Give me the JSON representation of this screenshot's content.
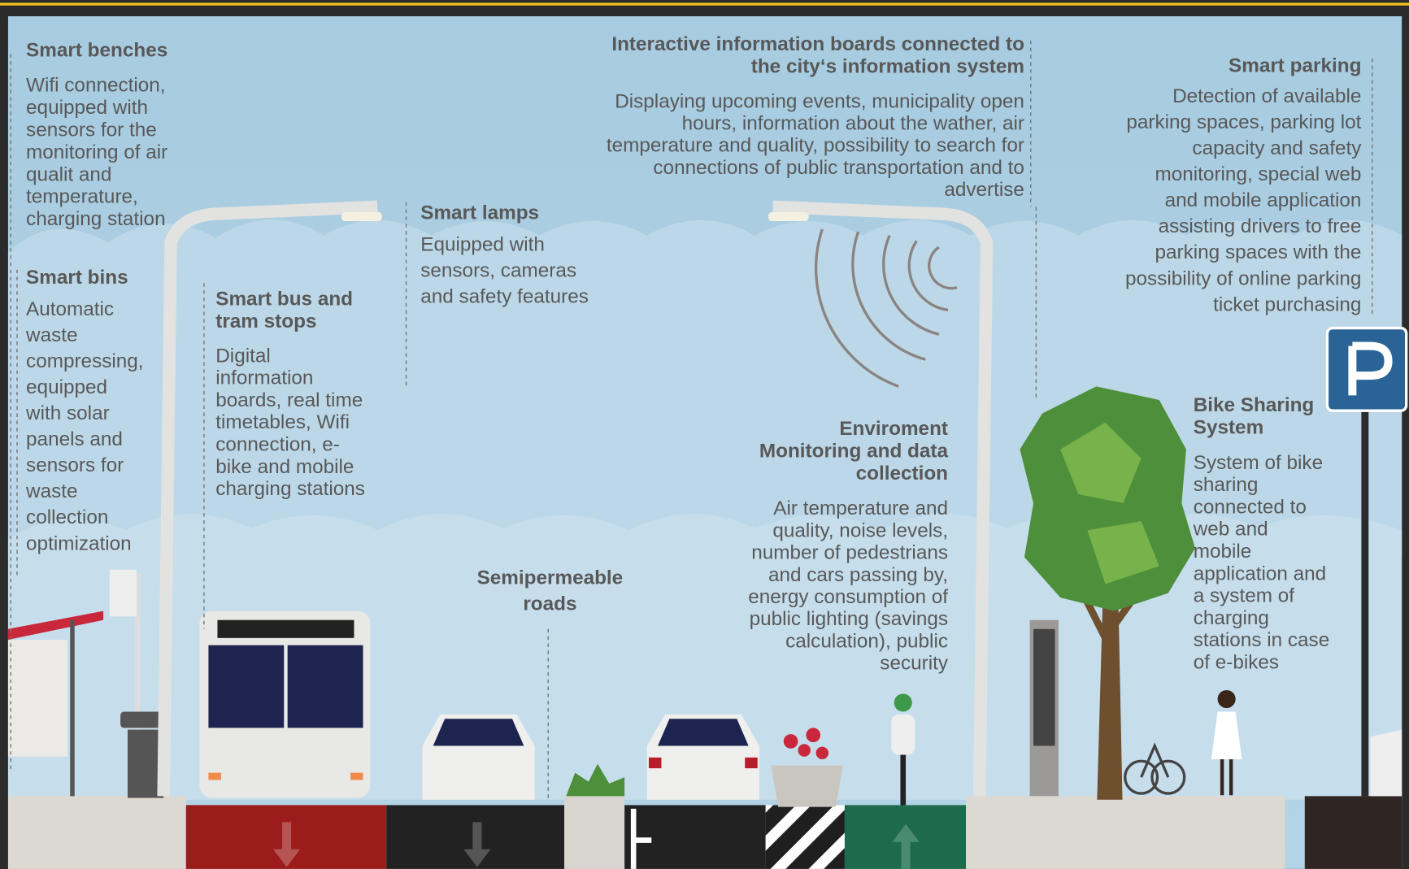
{
  "sections": [
    {
      "title": [
        "Smart benches"
      ],
      "body": [
        "Wifi connection,",
        "equipped with",
        "sensors for the",
        "monitoring of air",
        "qualit and",
        "temperature,",
        "charging station"
      ]
    },
    {
      "title": [
        "Smart bins"
      ],
      "body": [
        "Automatic",
        "waste",
        "compressing,",
        "equipped",
        "with solar",
        "panels and",
        "sensors for",
        "waste",
        "collection",
        "optimization"
      ]
    },
    {
      "title": [
        "Smart bus and",
        "tram stops"
      ],
      "body": [
        "Digital",
        "information",
        "boards, real time",
        "timetables,  Wifi",
        "connection, e-",
        "bike and mobile",
        "charging stations"
      ]
    },
    {
      "title": [
        "Smart lamps"
      ],
      "body": [
        "Equipped with",
        "sensors, cameras",
        "and safety features"
      ]
    },
    {
      "title": [
        "Interactive information  boards connected to",
        "the city‘s information  system"
      ],
      "body": [
        "Displaying upcoming events,  municipality open",
        "hours, information about the wather, air",
        "temperature and quality, possibility to search for",
        "connections of public transportation and to",
        "advertise"
      ]
    },
    {
      "title": [
        "Smart parking"
      ],
      "body": [
        "Detection of available",
        "parking spaces, parking lot",
        "capacity and safety",
        "monitoring, special web",
        "and mobile application",
        "assisting drivers to free",
        "parking spaces with the",
        "possibility of online parking",
        "ticket purchasing"
      ]
    },
    {
      "title": [
        "Enviroment",
        "Monitoring and data",
        "collection"
      ],
      "body": [
        "Air temperature and",
        "quality, noise levels,",
        "number of pedestrians",
        "and cars passing by,",
        "energy consumption of",
        "public lighting (savings",
        "calculation), public",
        "security"
      ]
    },
    {
      "title": [
        "Semipermeable",
        "roads"
      ],
      "body": []
    },
    {
      "title": [
        "Bike Sharing",
        "System"
      ],
      "body": [
        "System of bike",
        "sharing",
        "connected to",
        "web and",
        "mobile",
        "application and",
        "a system of",
        "charging",
        "stations in case",
        "of e-bikes"
      ]
    }
  ]
}
